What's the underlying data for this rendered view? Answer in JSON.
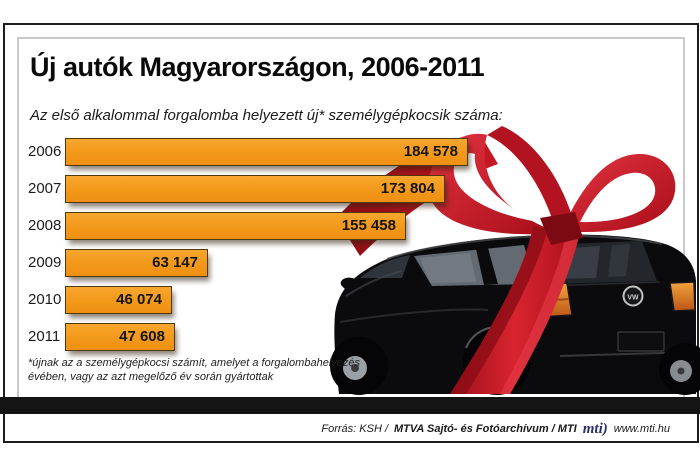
{
  "header": {
    "title": "Új autók Magyarországon, 2006-2011",
    "subtitle": "Az első alkalommal forgalomba helyezett új* személygépkocsik száma:"
  },
  "chart_data": {
    "type": "bar",
    "orientation": "horizontal",
    "title": "Új autók Magyarországon, 2006-2011",
    "xlabel": "",
    "ylabel": "",
    "xlim": [
      0,
      190000
    ],
    "grid": false,
    "legend": "none",
    "bar_color": "#F49A1E",
    "bar_border_color": "#50380e",
    "label_position": "inside-right",
    "categories": [
      "2006",
      "2007",
      "2008",
      "2009",
      "2010",
      "2011"
    ],
    "values": [
      184578,
      173804,
      155458,
      63147,
      46074,
      47608
    ],
    "value_labels": [
      "184 578",
      "173 804",
      "155 458",
      "63 147",
      "46 074",
      "47 608"
    ]
  },
  "footnote": {
    "line1": "*újnak az a személygépkocsi számít, amelyet a forgalombahelyezés",
    "line2": "évében, vagy az azt megelőző év során gyártottak"
  },
  "footer": {
    "source_italic": "Forrás: KSH /",
    "source_bold": "MTVA Sajtó- és Fotóarchívum / MTI",
    "logo_text": "mti)",
    "website": "www.mti.hu"
  },
  "illustration": {
    "description": "black hatchback car rear view wrapped with a red gift ribbon bow",
    "ribbon_color": "#C8101C",
    "car_color": "#0b0b0d"
  },
  "colors": {
    "background": "#ffffff",
    "frame_outer": "#1d1d1d",
    "frame_inner": "#c9c9c9",
    "ground_bar": "#141414",
    "accent_orange": "#F49A1E",
    "ribbon_red": "#C8101C",
    "logo_navy": "#2b2f6e"
  }
}
